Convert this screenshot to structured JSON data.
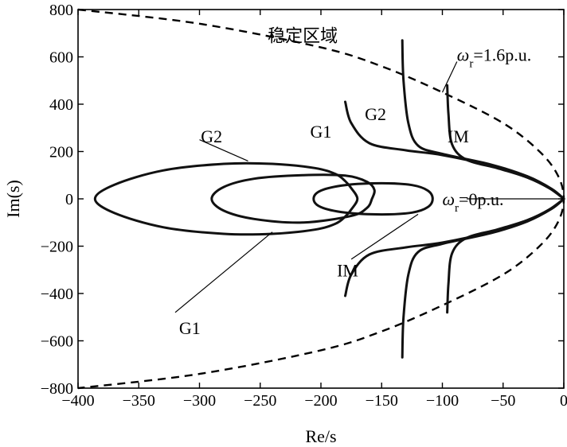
{
  "chart_data": {
    "type": "scatter",
    "title": "",
    "xlabel": "Re/s",
    "ylabel": "Im(s)",
    "xlim": [
      -400,
      0
    ],
    "ylim": [
      -800,
      800
    ],
    "x_ticks": [
      "-400",
      "-350",
      "-300",
      "-250",
      "-200",
      "-150",
      "-100",
      "-50",
      "0"
    ],
    "y_ticks": [
      "800",
      "600",
      "400",
      "200",
      "0",
      "-200",
      "-400",
      "-600",
      "-800"
    ],
    "grid": false,
    "stable_boundary": {
      "style": "dashed",
      "points": [
        [
          -400,
          800
        ],
        [
          -300,
          740
        ],
        [
          -200,
          640
        ],
        [
          -150,
          560
        ],
        [
          -100,
          450
        ],
        [
          -50,
          320
        ],
        [
          -20,
          200
        ],
        [
          -5,
          100
        ],
        [
          0,
          0
        ],
        [
          -5,
          -100
        ],
        [
          -20,
          -200
        ],
        [
          -50,
          -320
        ],
        [
          -100,
          -450
        ],
        [
          -150,
          -560
        ],
        [
          -200,
          -640
        ],
        [
          -300,
          -740
        ],
        [
          -400,
          -800
        ]
      ]
    },
    "series": [
      {
        "name": "G1",
        "loop": [
          [
            -386,
            0
          ],
          [
            -370,
            60
          ],
          [
            -330,
            120
          ],
          [
            -280,
            148
          ],
          [
            -240,
            148
          ],
          [
            -205,
            130
          ],
          [
            -188,
            105
          ],
          [
            -180,
            75
          ],
          [
            -175,
            45
          ],
          [
            -170,
            0
          ],
          [
            -175,
            -45
          ],
          [
            -180,
            -75
          ],
          [
            -188,
            -105
          ],
          [
            -205,
            -130
          ],
          [
            -240,
            -148
          ],
          [
            -280,
            -148
          ],
          [
            -330,
            -120
          ],
          [
            -370,
            -60
          ],
          [
            -386,
            0
          ]
        ],
        "upper": [
          [
            -180,
            410
          ],
          [
            -175,
            320
          ],
          [
            -160,
            235
          ],
          [
            -130,
            205
          ],
          [
            -100,
            185
          ],
          [
            -60,
            140
          ],
          [
            -30,
            90
          ],
          [
            -10,
            40
          ],
          [
            0,
            0
          ]
        ],
        "lower": [
          [
            -180,
            -410
          ],
          [
            -175,
            -320
          ],
          [
            -160,
            -235
          ],
          [
            -130,
            -205
          ],
          [
            -100,
            -185
          ],
          [
            -60,
            -140
          ],
          [
            -30,
            -90
          ],
          [
            -10,
            -40
          ],
          [
            0,
            0
          ]
        ]
      },
      {
        "name": "G2",
        "loop": [
          [
            -290,
            0
          ],
          [
            -280,
            50
          ],
          [
            -255,
            85
          ],
          [
            -215,
            100
          ],
          [
            -180,
            98
          ],
          [
            -162,
            72
          ],
          [
            -156,
            38
          ],
          [
            -158,
            0
          ],
          [
            -162,
            -38
          ],
          [
            -175,
            -72
          ],
          [
            -215,
            -100
          ],
          [
            -255,
            -85
          ],
          [
            -280,
            -50
          ],
          [
            -290,
            0
          ]
        ],
        "upper": [
          [
            -133,
            670
          ],
          [
            -132,
            500
          ],
          [
            -128,
            320
          ],
          [
            -120,
            225
          ],
          [
            -100,
            190
          ],
          [
            -60,
            145
          ],
          [
            -30,
            95
          ],
          [
            -10,
            42
          ],
          [
            0,
            0
          ]
        ],
        "lower": [
          [
            -133,
            -670
          ],
          [
            -132,
            -500
          ],
          [
            -128,
            -320
          ],
          [
            -120,
            -225
          ],
          [
            -100,
            -190
          ],
          [
            -60,
            -145
          ],
          [
            -30,
            -95
          ],
          [
            -10,
            -42
          ],
          [
            0,
            0
          ]
        ]
      },
      {
        "name": "IM",
        "loop": [
          [
            -206,
            0
          ],
          [
            -200,
            35
          ],
          [
            -180,
            58
          ],
          [
            -150,
            66
          ],
          [
            -125,
            58
          ],
          [
            -112,
            35
          ],
          [
            -108,
            0
          ],
          [
            -112,
            -35
          ],
          [
            -125,
            -58
          ],
          [
            -150,
            -66
          ],
          [
            -180,
            -58
          ],
          [
            -200,
            -35
          ],
          [
            -206,
            0
          ]
        ],
        "upper": [
          [
            -96,
            480
          ],
          [
            -95,
            360
          ],
          [
            -92,
            230
          ],
          [
            -80,
            165
          ],
          [
            -55,
            130
          ],
          [
            -30,
            90
          ],
          [
            -12,
            45
          ],
          [
            0,
            0
          ]
        ],
        "lower": [
          [
            -96,
            -480
          ],
          [
            -95,
            -360
          ],
          [
            -92,
            -230
          ],
          [
            -80,
            -165
          ],
          [
            -55,
            -130
          ],
          [
            -30,
            -90
          ],
          [
            -12,
            -45
          ],
          [
            0,
            0
          ]
        ]
      }
    ],
    "annotations": [
      {
        "id": "stable_region",
        "text": "稳定区域",
        "x": -215,
        "y": 690
      },
      {
        "id": "wr_high",
        "symbol": "ω",
        "sub": "r",
        "value": "=1.6p.u.",
        "x": -88,
        "y": 610
      },
      {
        "id": "wr_zero",
        "symbol": "ω",
        "sub": "r",
        "value": "=0p.u.",
        "x": -100,
        "y": 0
      },
      {
        "id": "g1_right",
        "text": "G1",
        "x": -200,
        "y": 285
      },
      {
        "id": "g2_right",
        "text": "G2",
        "x": -155,
        "y": 360
      },
      {
        "id": "im_right",
        "text": "IM",
        "x": -87,
        "y": 265
      },
      {
        "id": "g2_left",
        "text": "G2",
        "x": -290,
        "y": 265
      },
      {
        "id": "im_left",
        "text": "IM",
        "x": -178,
        "y": -300
      },
      {
        "id": "g1_left",
        "text": "G1",
        "x": -308,
        "y": -545
      }
    ]
  }
}
